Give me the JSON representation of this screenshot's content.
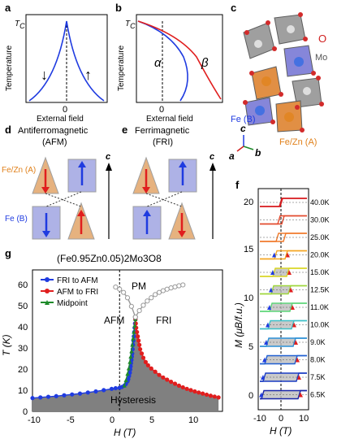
{
  "panels": {
    "a": {
      "label": "a",
      "ylabel": "Temperature",
      "xlabel": "External field",
      "tc": "T",
      "tc_sub": "C",
      "xtick": "0"
    },
    "b": {
      "label": "b",
      "ylabel": "Temperature",
      "xlabel": "External field",
      "tc": "T",
      "tc_sub": "C",
      "xtick": "0",
      "alpha": "α",
      "beta": "β"
    },
    "c": {
      "label": "c",
      "o_label": "O",
      "mo_label": "Mo",
      "fe_b_label": "Fe (B)",
      "fezn_a_label": "Fe/Zn (A)",
      "axis_c": "c",
      "axis_a": "a",
      "axis_b": "b"
    },
    "d": {
      "label": "d",
      "title_line1": "Antiferromagnetic",
      "title_line2": "(AFM)",
      "site_a": "Fe/Zn (A)",
      "site_b": "Fe (B)",
      "axis": "c"
    },
    "e": {
      "label": "e",
      "title_line1": "Ferrimagnetic",
      "title_line2": "(FRI)",
      "axis": "c"
    },
    "f": {
      "label": "f",
      "ylabel": "M (μB/f.u.)",
      "xlabel": "H (T)",
      "temps": [
        "40.0K",
        "30.0K",
        "25.0K",
        "20.0K",
        "15.0K",
        "12.5K",
        "11.0K",
        "10.0K",
        "9.0K",
        "8.0K",
        "7.5K",
        "6.5K"
      ],
      "colors": [
        "#d7191c",
        "#e34a2e",
        "#f07a2c",
        "#f5a623",
        "#d9d626",
        "#9fd63d",
        "#5ed67a",
        "#3cc0c8",
        "#2a8fd6",
        "#1f5fd1",
        "#1a3cc4",
        "#1826a8"
      ],
      "yticks": [
        "0",
        "5",
        "10",
        "15",
        "20"
      ],
      "xticks": [
        "-10",
        "0",
        "10"
      ]
    },
    "g": {
      "label": "g",
      "title": "(Fe0.95Zn0.05)2Mo3O8",
      "ylabel": "T (K)",
      "xlabel": "H (T)",
      "legend": [
        {
          "name": "FRI to AFM",
          "color": "#1f3be0"
        },
        {
          "name": "AFM to FRI",
          "color": "#e01e1e"
        },
        {
          "name": "Midpoint",
          "color": "#1e8a2a"
        }
      ],
      "region_pm": "PM",
      "region_afm": "AFM",
      "region_fri": "FRI",
      "region_hyst": "Hysteresis",
      "xticks": [
        "-10",
        "-5",
        "0",
        "5",
        "10"
      ],
      "yticks": [
        "0",
        "10",
        "20",
        "30",
        "40",
        "50",
        "60"
      ]
    }
  },
  "chart_data": [
    {
      "type": "line",
      "title": "",
      "xlabel": "H (T)",
      "ylabel": "T (K)",
      "xlim": [
        -11,
        13
      ],
      "ylim": [
        0,
        66
      ],
      "series": [
        {
          "name": "FRI to AFM",
          "x": [
            -11,
            -10,
            -9,
            -8,
            -7,
            -6,
            -5,
            -4,
            -3,
            -2,
            -1,
            -0.5,
            0,
            0.3,
            0.6,
            0.8,
            1.0,
            1.1,
            1.2,
            1.3,
            1.35,
            1.4,
            1.45,
            1.5,
            1.55,
            1.6,
            1.65,
            1.7,
            1.75,
            1.8,
            1.85,
            1.9,
            1.95,
            2.0
          ],
          "y": [
            6.2,
            6.5,
            6.8,
            7.1,
            7.5,
            7.9,
            8.3,
            8.8,
            9.3,
            9.9,
            10.5,
            10.8,
            11.0,
            11.4,
            12.0,
            12.8,
            14.0,
            15.0,
            16.5,
            18.0,
            19.5,
            21.0,
            22.5,
            24.0,
            25.5,
            27.0,
            29.0,
            31.0,
            33.0,
            35.0,
            37.0,
            39.0,
            41.0,
            43.0
          ]
        },
        {
          "name": "AFM to FRI",
          "x": [
            2.0,
            2.05,
            2.1,
            2.2,
            2.3,
            2.4,
            2.5,
            2.6,
            2.8,
            3.0,
            3.3,
            3.6,
            4.0,
            4.5,
            5.0,
            5.5,
            6.0,
            6.5,
            7.0,
            7.5,
            8.0,
            8.5,
            9.0,
            9.5,
            10.0,
            10.5,
            11.0,
            11.5,
            12.0,
            12.5
          ],
          "y": [
            43.0,
            41.0,
            39.0,
            37.0,
            35.0,
            33.0,
            31.0,
            29.0,
            27.0,
            25.0,
            23.0,
            21.5,
            20.0,
            18.5,
            17.0,
            15.8,
            14.8,
            13.8,
            12.9,
            12.0,
            11.2,
            10.5,
            9.9,
            9.3,
            8.8,
            8.3,
            7.8,
            7.3,
            6.9,
            6.5
          ]
        },
        {
          "name": "Midpoint",
          "x": [
            0.6,
            0.8,
            1.0,
            1.15,
            1.3,
            1.4,
            1.5,
            1.6,
            1.7,
            1.8,
            1.9,
            2.0
          ],
          "y": [
            12.0,
            14.5,
            17.5,
            20.0,
            23.0,
            25.5,
            28.0,
            31.0,
            34.0,
            37.0,
            40.0,
            43.0
          ]
        },
        {
          "name": "",
          "x": [
            -0.5,
            0,
            0.5,
            1.0,
            1.5,
            2.0
          ],
          "y": [
            58.0,
            57.0,
            55.5,
            53.0,
            49.0,
            44.0
          ]
        },
        {
          "name": "",
          "x": [
            2.0,
            2.5,
            3.0,
            3.5,
            4.0,
            4.5,
            5.0,
            5.5,
            6.0,
            6.5,
            7.0,
            7.5,
            8.0
          ],
          "y": [
            44.0,
            47.0,
            49.5,
            51.5,
            53.0,
            54.5,
            55.5,
            56.3,
            57.0,
            57.6,
            58.1,
            58.6,
            59.0
          ]
        }
      ]
    }
  ]
}
